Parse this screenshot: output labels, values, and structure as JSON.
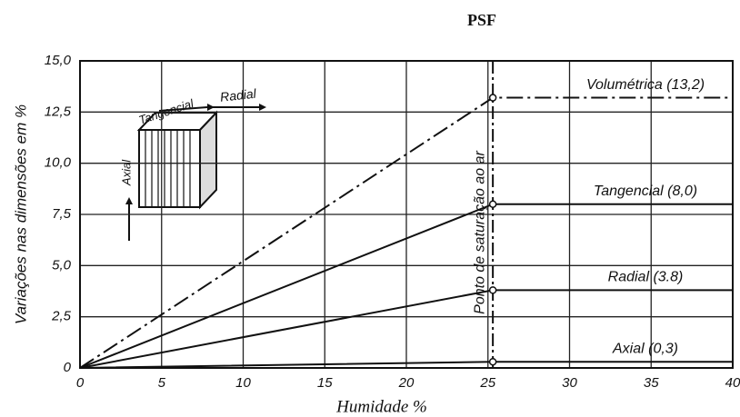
{
  "chart_data": {
    "type": "line",
    "title": "PSF",
    "xlabel": "Humidade %",
    "ylabel": "Variações nas dimensões em %",
    "xlim": [
      0,
      40
    ],
    "ylim": [
      0,
      15
    ],
    "xticks": [
      0,
      5,
      10,
      15,
      20,
      25,
      30,
      35,
      40
    ],
    "yticks": [
      0,
      {
        "value": 2.5,
        "label": "2,5"
      },
      {
        "value": 5,
        "label": "5,0"
      },
      {
        "value": 7.5,
        "label": "7,5"
      },
      {
        "value": 10,
        "label": "10,0"
      },
      {
        "value": 12.5,
        "label": "12,5"
      },
      {
        "value": 15,
        "label": "15,0"
      }
    ],
    "grid": true,
    "psf": {
      "label": "Ponto de saturação ao ar",
      "x": 25.3
    },
    "series": [
      {
        "name": "Volumétrica (13,2)",
        "color": "#111111",
        "dash": "dashdot",
        "x": [
          0,
          25.3,
          40
        ],
        "values": [
          0,
          13.2,
          13.2
        ]
      },
      {
        "name": "Tangencial (8,0)",
        "color": "#111111",
        "dash": "solid",
        "x": [
          0,
          25.3,
          40
        ],
        "values": [
          0,
          8.0,
          8.0
        ]
      },
      {
        "name": "Radial (3.8)",
        "color": "#111111",
        "dash": "solid",
        "x": [
          0,
          25.3,
          40
        ],
        "values": [
          0,
          3.8,
          3.8
        ]
      },
      {
        "name": "Axial (0,3)",
        "color": "#111111",
        "dash": "solid",
        "x": [
          0,
          25.3,
          40
        ],
        "values": [
          0,
          0.3,
          0.3
        ]
      }
    ],
    "inset": {
      "labels": [
        "Tangencial",
        "Radial",
        "Axial"
      ]
    }
  }
}
